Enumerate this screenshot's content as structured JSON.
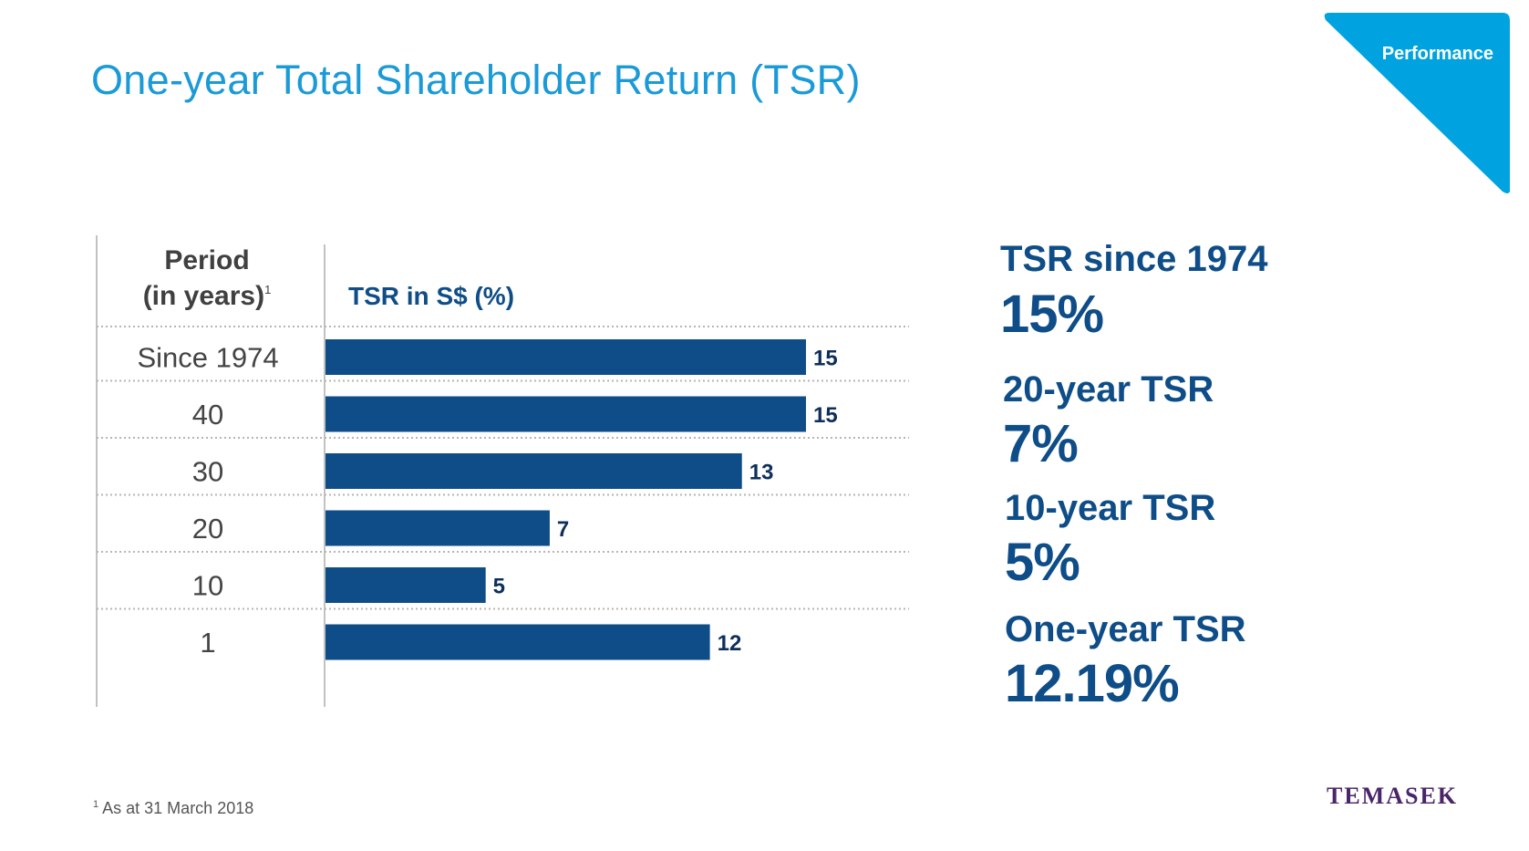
{
  "page": {
    "title": "One-year Total Shareholder Return (TSR)",
    "corner_tag": "Performance",
    "footnote_marker": "1",
    "footnote": "As at 31 March 2018",
    "logo": "TEMASEK"
  },
  "colors": {
    "title": "#1a9ad6",
    "corner": "#00a3e0",
    "bar": "#0e4d87",
    "stat_text": "#0e4d87",
    "logo": "#4a2569"
  },
  "chart_data": {
    "type": "bar",
    "orientation": "horizontal",
    "period_header_line1": "Period",
    "period_header_line2": "(in years)",
    "period_header_sup": "1",
    "value_header": "TSR in S$ (%)",
    "categories": [
      "Since 1974",
      "40",
      "30",
      "20",
      "10",
      "1"
    ],
    "values": [
      15,
      15,
      13,
      7,
      5,
      12
    ],
    "xlim": [
      0,
      15
    ],
    "grid": false
  },
  "stats": [
    {
      "label": "TSR since 1974",
      "value": "15%"
    },
    {
      "label": "20-year TSR",
      "value": "7%"
    },
    {
      "label": "10-year TSR",
      "value": "5%"
    },
    {
      "label": "One-year TSR",
      "value": "12.19%"
    }
  ]
}
